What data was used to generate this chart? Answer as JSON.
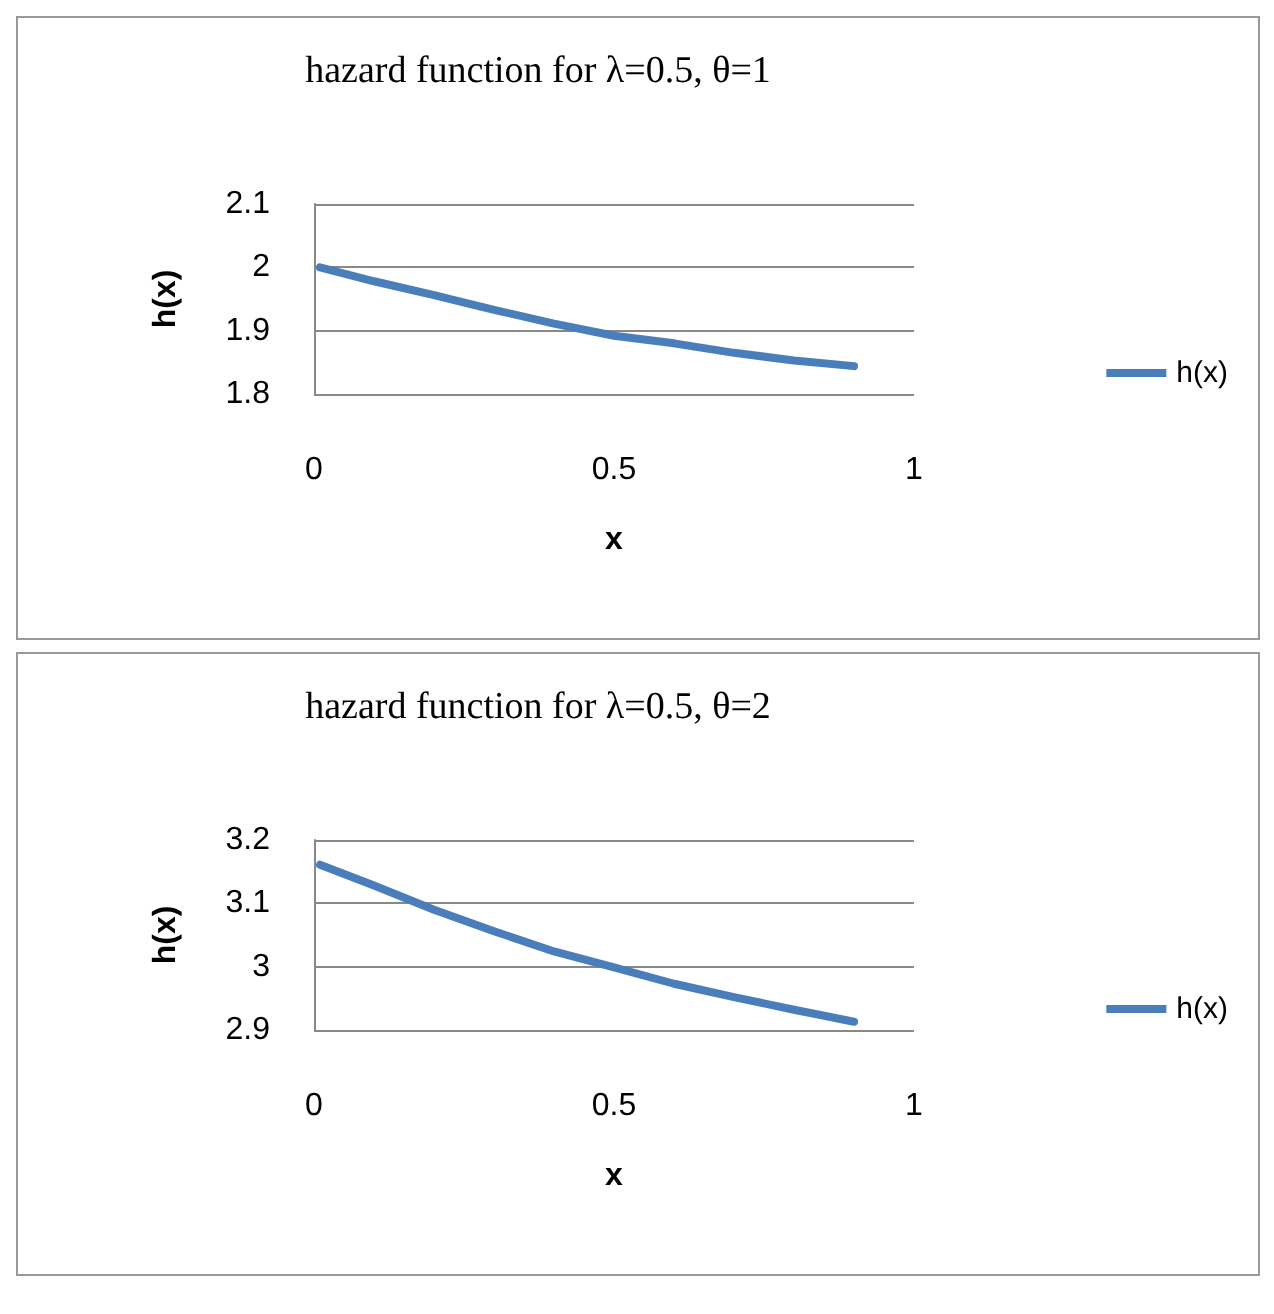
{
  "chart_data": [
    {
      "type": "line",
      "title": "hazard function for λ=0.5, θ=1",
      "xlabel": "x",
      "ylabel": "h(x)",
      "x": [
        0.01,
        0.1,
        0.2,
        0.3,
        0.4,
        0.5,
        0.6,
        0.7,
        0.8,
        0.9
      ],
      "series": [
        {
          "name": "h(x)",
          "color": "#4a7ebb",
          "values": [
            2.0,
            1.978,
            1.956,
            1.933,
            1.911,
            1.892,
            1.88,
            1.865,
            1.853,
            1.844
          ]
        }
      ],
      "xlim": [
        0,
        1
      ],
      "xticks": [
        0,
        0.5,
        1
      ],
      "ylim": [
        1.8,
        2.1
      ],
      "yticks": [
        1.8,
        1.9,
        2,
        2.1
      ],
      "grid": "y",
      "legend": "right",
      "marker": "none",
      "line_style": "solid"
    },
    {
      "type": "line",
      "title": "hazard function for λ=0.5, θ=2",
      "xlabel": "x",
      "ylabel": "h(x)",
      "x": [
        0.01,
        0.1,
        0.2,
        0.3,
        0.4,
        0.5,
        0.6,
        0.7,
        0.8,
        0.9
      ],
      "series": [
        {
          "name": "h(x)",
          "color": "#4a7ebb",
          "values": [
            3.161,
            3.128,
            3.09,
            3.056,
            3.024,
            2.999,
            2.973,
            2.952,
            2.932,
            2.913
          ]
        }
      ],
      "xlim": [
        0,
        1
      ],
      "xticks": [
        0,
        0.5,
        1
      ],
      "ylim": [
        2.9,
        3.2
      ],
      "yticks": [
        2.9,
        3,
        3.1,
        3.2
      ],
      "grid": "y",
      "legend": "right",
      "marker": "none",
      "line_style": "solid"
    }
  ]
}
